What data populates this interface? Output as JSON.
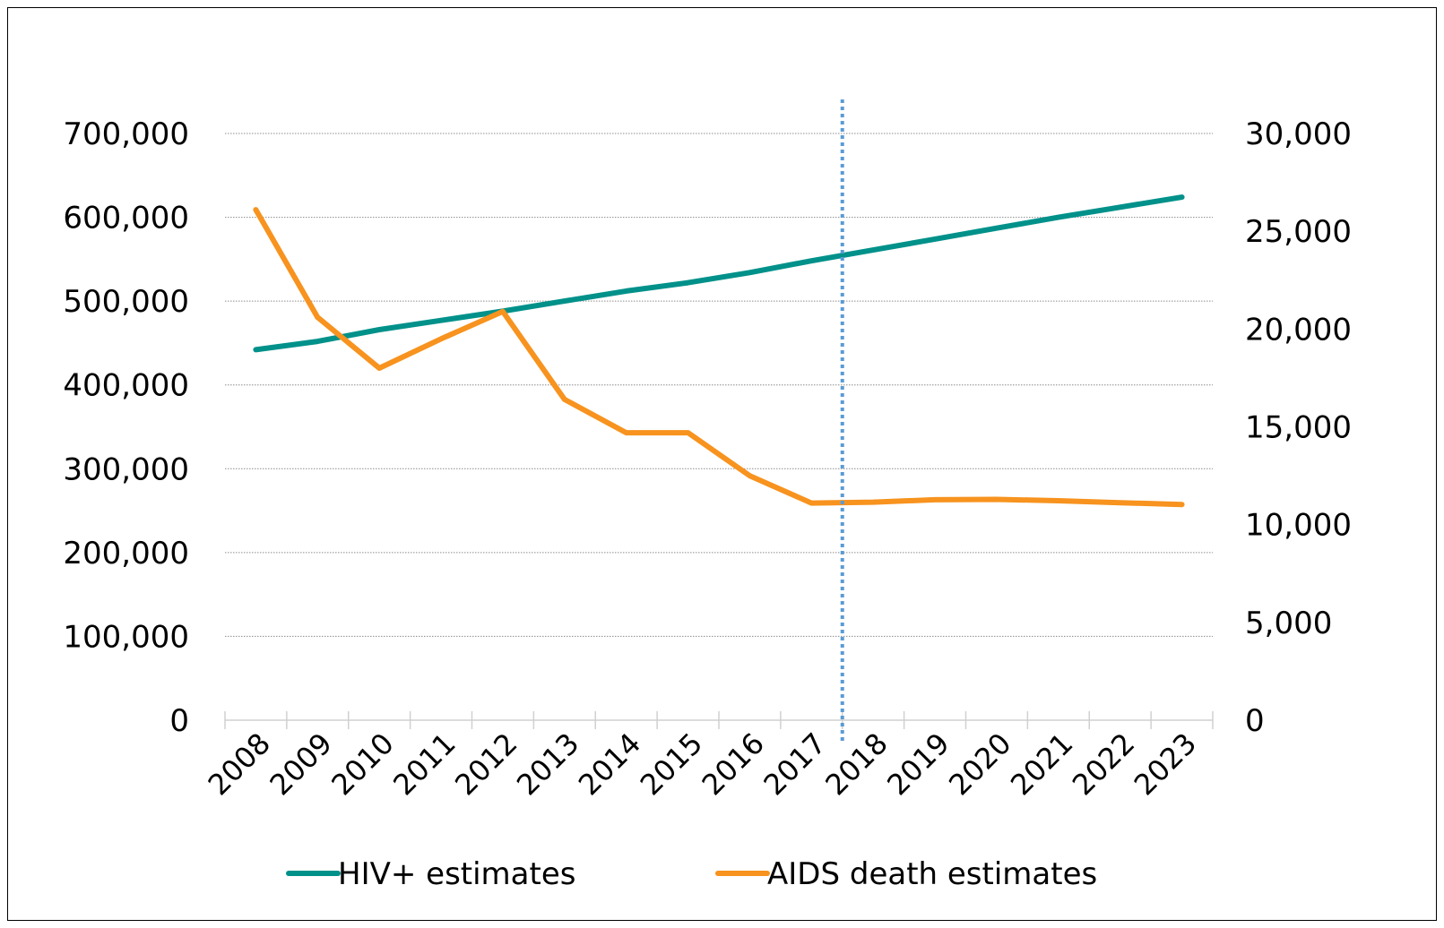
{
  "chart_data": {
    "type": "line",
    "title": "",
    "xlabel": "",
    "ylabel": "",
    "categories": [
      "2008",
      "2009",
      "2010",
      "2011",
      "2012",
      "2013",
      "2014",
      "2015",
      "2016",
      "2017",
      "2018",
      "2019",
      "2020",
      "2021",
      "2022",
      "2023"
    ],
    "y_left": {
      "range": [
        0,
        700000
      ],
      "ticks": [
        0,
        100000,
        200000,
        300000,
        400000,
        500000,
        600000,
        700000
      ],
      "tick_labels": [
        "0",
        "100,000",
        "200,000",
        "300,000",
        "400,000",
        "500,000",
        "600,000",
        "700,000"
      ]
    },
    "y_right": {
      "range": [
        0,
        30000
      ],
      "ticks": [
        0,
        5000,
        10000,
        15000,
        20000,
        25000,
        30000
      ],
      "tick_labels": [
        "0",
        "5,000",
        "10,000",
        "15,000",
        "20,000",
        "25,000",
        "30,000"
      ]
    },
    "series": [
      {
        "name": "HIV+ estimates",
        "axis": "left",
        "color": "#00918A",
        "values": [
          442000,
          452000,
          466000,
          477000,
          488000,
          500000,
          512000,
          522000,
          534000,
          548000,
          561000,
          574000,
          587000,
          600000,
          612000,
          624000
        ]
      },
      {
        "name": "AIDS death estimates",
        "axis": "right",
        "color": "#F7931E",
        "values": [
          26100,
          20600,
          18000,
          19500,
          20900,
          16400,
          14700,
          14700,
          12500,
          11100,
          11150,
          11270,
          11290,
          11220,
          11120,
          11030
        ]
      }
    ],
    "reference_line": {
      "x": "2018",
      "style": "dotted",
      "color": "#5B9BD5"
    },
    "grid": true,
    "legend_position": "bottom"
  }
}
